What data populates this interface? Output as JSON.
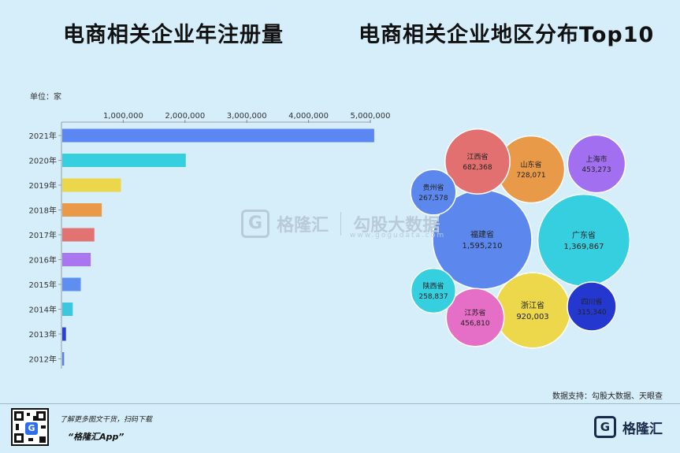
{
  "titles": {
    "left": "电商相关企业年注册量",
    "right": "电商相关企业地区分布Top10"
  },
  "chart_data": [
    {
      "type": "bar",
      "orientation": "horizontal",
      "title": "电商相关企业年注册量",
      "unit_label": "单位：家",
      "xlim": [
        0,
        5000000
      ],
      "ticks": [
        1000000,
        2000000,
        3000000,
        4000000,
        5000000
      ],
      "tick_labels": [
        "1,000,000",
        "2,000,000",
        "3,000,000",
        "4,000,000",
        "5,000,000"
      ],
      "categories": [
        "2021年",
        "2020年",
        "2019年",
        "2018年",
        "2017年",
        "2016年",
        "2015年",
        "2014年",
        "2013年",
        "2012年"
      ],
      "values": [
        5050000,
        2000000,
        950000,
        640000,
        520000,
        460000,
        300000,
        170000,
        60000,
        30000
      ],
      "colors": [
        "#5c86f2",
        "#35cfe0",
        "#ecd64a",
        "#e99a48",
        "#e27373",
        "#a976ef",
        "#5e8ef0",
        "#3cc7de",
        "#2d3ed4",
        "#5a7fe6"
      ]
    },
    {
      "type": "bubble",
      "title": "电商相关企业地区分布Top10",
      "items": [
        {
          "name": "福建省",
          "value": 1595210,
          "label": "1,595,210",
          "color": "#5c88ee"
        },
        {
          "name": "广东省",
          "value": 1369867,
          "label": "1,369,867",
          "color": "#35cfe0"
        },
        {
          "name": "浙江省",
          "value": 920003,
          "label": "920,003",
          "color": "#ecd84a"
        },
        {
          "name": "山东省",
          "value": 728071,
          "label": "728,071",
          "color": "#e99a48"
        },
        {
          "name": "江西省",
          "value": 682368,
          "label": "682,368",
          "color": "#e27070"
        },
        {
          "name": "江苏省",
          "value": 456810,
          "label": "456,810",
          "color": "#e56ec6"
        },
        {
          "name": "上海市",
          "value": 453273,
          "label": "453,273",
          "color": "#a26ff0"
        },
        {
          "name": "四川省",
          "value": 315340,
          "label": "315,340",
          "color": "#2438d0"
        },
        {
          "name": "贵州省",
          "value": 267578,
          "label": "267,578",
          "color": "#5c88ee"
        },
        {
          "name": "陕西省",
          "value": 258837,
          "label": "258,837",
          "color": "#35cfe0"
        }
      ]
    }
  ],
  "watermark": {
    "logo_letter": "G",
    "name": "格隆汇",
    "name2": "勾股大数据",
    "url": "www.gogudata.com"
  },
  "source_text": "数据支持：勾股大数据、天眼查",
  "footer": {
    "promo_line1": "了解更多图文干货，扫码下载",
    "promo_line2": "“格隆汇App”",
    "qr_letter": "G",
    "logo_letter": "G",
    "logo_name": "格隆汇"
  }
}
